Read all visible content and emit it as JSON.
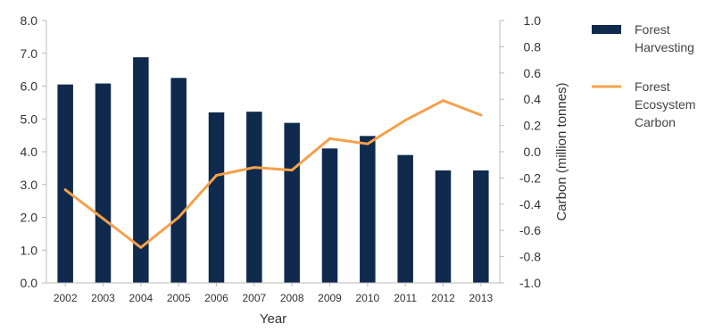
{
  "chart_data": {
    "type": "bar",
    "categories": [
      "2002",
      "2003",
      "2004",
      "2005",
      "2006",
      "2007",
      "2008",
      "2009",
      "2010",
      "2011",
      "2012",
      "2013"
    ],
    "series": [
      {
        "name": "Forest Harvesting",
        "type": "bar",
        "axis": "left",
        "values": [
          6.05,
          6.08,
          6.88,
          6.25,
          5.2,
          5.22,
          4.88,
          4.1,
          4.48,
          3.9,
          3.43,
          3.43
        ],
        "color": "#0f2a4d"
      },
      {
        "name": "Forest Ecosystem Carbon",
        "type": "line",
        "axis": "right",
        "values": [
          -0.29,
          -0.51,
          -0.73,
          -0.5,
          -0.18,
          -0.12,
          -0.14,
          0.1,
          0.06,
          0.24,
          0.39,
          0.28
        ],
        "color": "#f5a04a"
      }
    ],
    "xlabel": "Year",
    "ylabel": "",
    "y2label": "Carbon (million tonnes)",
    "ylim": [
      0,
      8
    ],
    "y2lim": [
      -1,
      1
    ],
    "yticks": [
      "0.0",
      "1.0",
      "2.0",
      "3.0",
      "4.0",
      "5.0",
      "6.0",
      "7.0",
      "8.0"
    ],
    "y2ticks": [
      "-1.0",
      "-0.8",
      "-0.6",
      "-0.4",
      "-0.2",
      "0.0",
      "0.2",
      "0.4",
      "0.6",
      "0.8",
      "1.0"
    ],
    "legend": {
      "position": "right",
      "entries": [
        {
          "lines": [
            "Forest",
            "Harvesting"
          ]
        },
        {
          "lines": [
            "Forest",
            "Ecosystem",
            "Carbon"
          ]
        }
      ]
    },
    "grid": false
  }
}
